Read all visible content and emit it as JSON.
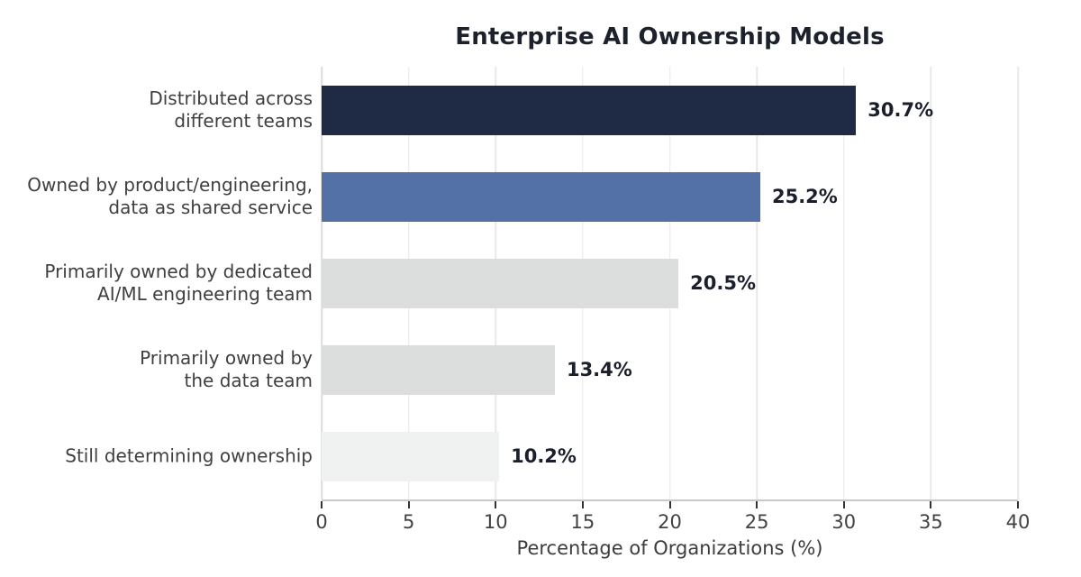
{
  "chart_data": {
    "type": "bar",
    "orientation": "horizontal",
    "title": "Enterprise AI Ownership Models",
    "xlabel": "Percentage of Organizations (%)",
    "categories": [
      "Distributed across\ndifferent teams",
      "Owned by product/engineering,\ndata as shared service",
      "Primarily owned by dedicated\nAI/ML engineering team",
      "Primarily owned by\nthe data team",
      "Still determining ownership"
    ],
    "values": [
      30.7,
      25.2,
      20.5,
      13.4,
      10.2
    ],
    "value_labels": [
      "30.7%",
      "25.2%",
      "20.5%",
      "13.4%",
      "10.2%"
    ],
    "bar_colors": [
      "#1f2a44",
      "#5371a7",
      "#dcdddd",
      "#dcdddd",
      "#f0f1f1"
    ],
    "xlim": [
      0,
      40
    ],
    "xticks": [
      0,
      5,
      10,
      15,
      20,
      25,
      30,
      35,
      40
    ],
    "grid": "vertical",
    "legend": "none"
  },
  "style": {
    "gridline_color": "#e8e8e8",
    "spine_color": "#c9c9c9",
    "tick_color": "#333333",
    "title_color": "#1c212c",
    "value_label_color": "#1a1f2b",
    "category_label_color": "#3f3f3f",
    "background": "#ffffff"
  }
}
